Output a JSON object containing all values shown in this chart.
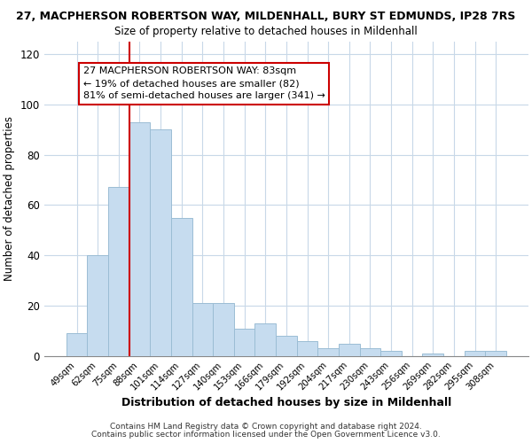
{
  "title": "27, MACPHERSON ROBERTSON WAY, MILDENHALL, BURY ST EDMUNDS, IP28 7RS",
  "subtitle": "Size of property relative to detached houses in Mildenhall",
  "xlabel": "Distribution of detached houses by size in Mildenhall",
  "ylabel": "Number of detached properties",
  "bar_labels": [
    "49sqm",
    "62sqm",
    "75sqm",
    "88sqm",
    "101sqm",
    "114sqm",
    "127sqm",
    "140sqm",
    "153sqm",
    "166sqm",
    "179sqm",
    "192sqm",
    "204sqm",
    "217sqm",
    "230sqm",
    "243sqm",
    "256sqm",
    "269sqm",
    "282sqm",
    "295sqm",
    "308sqm"
  ],
  "bar_values": [
    9,
    40,
    67,
    93,
    90,
    55,
    21,
    21,
    11,
    13,
    8,
    6,
    3,
    5,
    3,
    2,
    0,
    1,
    0,
    2,
    2
  ],
  "bar_color": "#c6dcef",
  "bar_edge_color": "#9bbdd4",
  "vline_x_idx": 3,
  "vline_color": "#cc0000",
  "ylim": [
    0,
    125
  ],
  "yticks": [
    0,
    20,
    40,
    60,
    80,
    100,
    120
  ],
  "annotation_line1": "27 MACPHERSON ROBERTSON WAY: 83sqm",
  "annotation_line2": "← 19% of detached houses are smaller (82)",
  "annotation_line3": "81% of semi-detached houses are larger (341) →",
  "annotation_box_color": "#ffffff",
  "annotation_box_edge_color": "#cc0000",
  "footer_line1": "Contains HM Land Registry data © Crown copyright and database right 2024.",
  "footer_line2": "Contains public sector information licensed under the Open Government Licence v3.0.",
  "background_color": "#ffffff",
  "grid_color": "#c8d8e8"
}
